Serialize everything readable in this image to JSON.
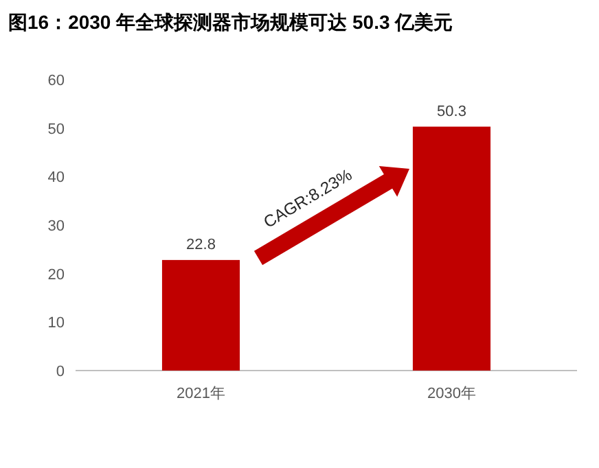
{
  "chart_data": {
    "type": "bar",
    "title": "图16：2030 年全球探测器市场规模可达 50.3 亿美元",
    "categories": [
      "2021年",
      "2030年"
    ],
    "values": [
      22.8,
      50.3
    ],
    "color": "#c00000",
    "ylim": [
      0,
      60
    ],
    "yticks": [
      0,
      10,
      20,
      30,
      40,
      50,
      60
    ],
    "data_labels": true,
    "grid": false,
    "annotations": [
      "CAGR:8.23%"
    ]
  }
}
